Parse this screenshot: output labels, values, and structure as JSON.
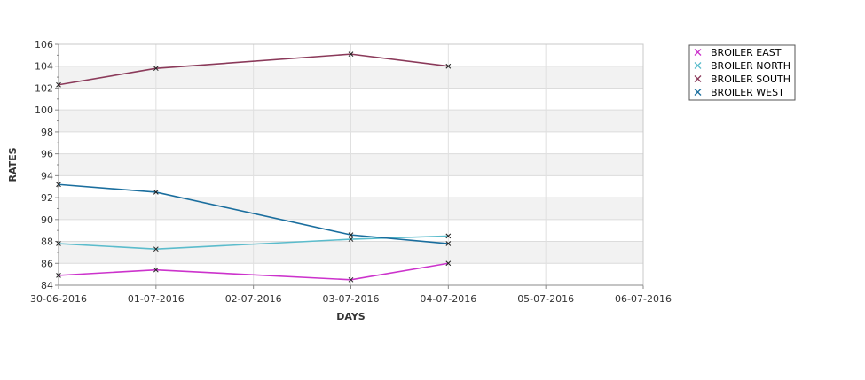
{
  "chart_data": {
    "type": "line",
    "title": "",
    "xlabel": "DAYS",
    "ylabel": "RATES",
    "x": [
      "30-06-2016",
      "01-07-2016",
      "02-07-2016",
      "03-07-2016",
      "04-07-2016",
      "05-07-2016",
      "06-07-2016"
    ],
    "ylim": [
      84,
      106
    ],
    "yticks": [
      84,
      86,
      88,
      90,
      92,
      94,
      96,
      98,
      100,
      102,
      104,
      106
    ],
    "grid": true,
    "legend_position": "top-right",
    "series": [
      {
        "name": "BROILER EAST",
        "color": "#cc33cc",
        "points": [
          [
            "30-06-2016",
            84.9
          ],
          [
            "01-07-2016",
            85.4
          ],
          [
            "03-07-2016",
            84.5
          ],
          [
            "04-07-2016",
            86.0
          ]
        ]
      },
      {
        "name": "BROILER NORTH",
        "color": "#5bbccc",
        "points": [
          [
            "30-06-2016",
            87.8
          ],
          [
            "01-07-2016",
            87.3
          ],
          [
            "03-07-2016",
            88.2
          ],
          [
            "04-07-2016",
            88.5
          ]
        ]
      },
      {
        "name": "BROILER SOUTH",
        "color": "#8b3a5a",
        "points": [
          [
            "30-06-2016",
            102.3
          ],
          [
            "01-07-2016",
            103.8
          ],
          [
            "03-07-2016",
            105.1
          ],
          [
            "04-07-2016",
            104.0
          ]
        ]
      },
      {
        "name": "BROILER WEST",
        "color": "#1a6e9e",
        "points": [
          [
            "30-06-2016",
            93.2
          ],
          [
            "01-07-2016",
            92.5
          ],
          [
            "03-07-2016",
            88.6
          ],
          [
            "04-07-2016",
            87.8
          ]
        ]
      }
    ]
  }
}
